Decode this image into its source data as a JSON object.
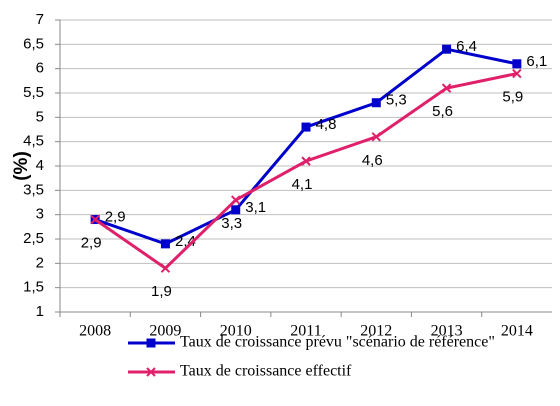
{
  "chart_data": {
    "type": "line",
    "y_label": "(%)",
    "categories": [
      "2008",
      "2009",
      "2010",
      "2011",
      "2012",
      "2013",
      "2014"
    ],
    "series": [
      {
        "name": "Taux de croissance prévu \"scénario de référence\"",
        "color": "#0000cc",
        "marker": "square",
        "values": [
          2.9,
          2.4,
          3.1,
          4.8,
          5.3,
          6.4,
          6.1
        ],
        "value_labels": [
          "2,9",
          "2,4",
          "3,1",
          "4,8",
          "5,3",
          "6,4",
          "6,1"
        ]
      },
      {
        "name": "Taux de croissance effectif",
        "color": "#e0206a",
        "marker": "x",
        "values": [
          2.9,
          1.9,
          3.3,
          4.1,
          4.6,
          5.6,
          5.9
        ],
        "value_labels": [
          "2,9",
          "1,9",
          "3,3",
          "4,1",
          "4,6",
          "5,6",
          "5,9"
        ]
      }
    ],
    "ylim": [
      1,
      7
    ],
    "yticks": [
      1,
      {
        "value": 1.5,
        "label": "1,5"
      },
      2,
      {
        "value": 2.5,
        "label": "2,5"
      },
      3,
      {
        "value": 3.5,
        "label": "3,5"
      },
      4,
      {
        "value": 4.5,
        "label": "4,5"
      },
      5,
      {
        "value": 5.5,
        "label": "5,5"
      },
      6,
      {
        "value": 6.5,
        "label": "6,5"
      },
      7
    ],
    "grid": true,
    "legend": "bottom"
  }
}
